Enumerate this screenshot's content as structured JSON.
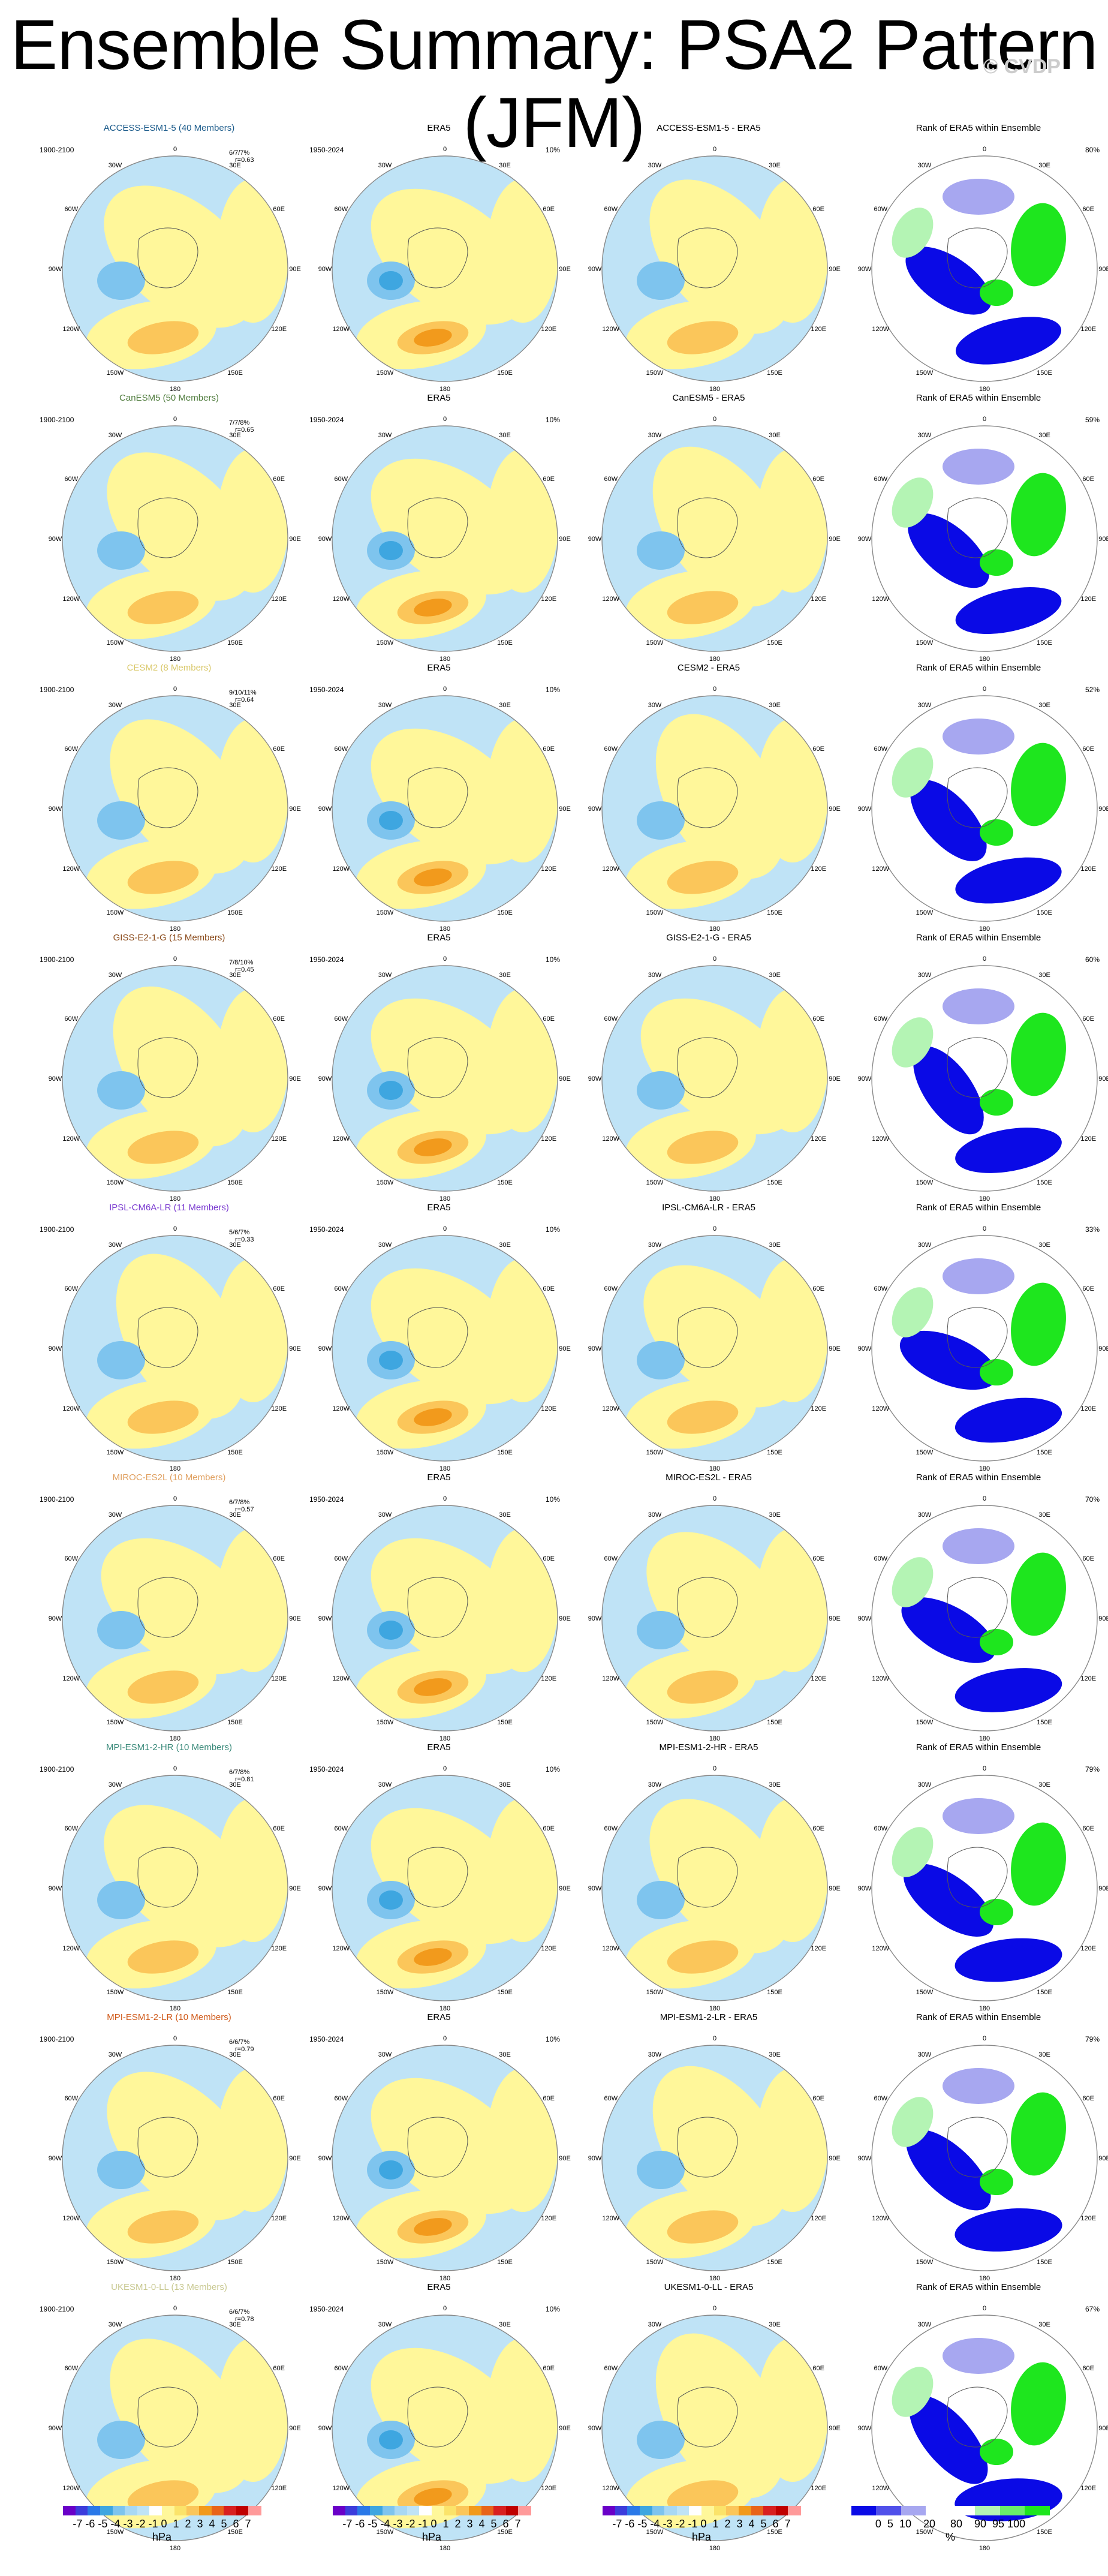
{
  "page": {
    "title": "Ensemble Summary: PSA2 Pattern (JFM)",
    "watermark": "© CVDP"
  },
  "colors": {
    "positive_light": "#fff79a",
    "positive_mid": "#fbc65a",
    "positive_strong": "#f29a1c",
    "negative_light": "#bfe3f6",
    "negative_mid": "#7ec4ee",
    "negative_strong": "#3ea6e0",
    "rank_low": "#0a0ae6",
    "rank_low_light": "#a7a7f0",
    "rank_high": "#1ee61e",
    "rank_high_light": "#b4f4b4"
  },
  "shared": {
    "era5_title": "ERA5",
    "era5_period": "1950-2024",
    "era5_pct": "10%",
    "model_period": "1900-2100",
    "rank_title": "Rank of ERA5 within Ensemble",
    "lon_labels": [
      "0",
      "30E",
      "60E",
      "90E",
      "120E",
      "150E",
      "180",
      "150W",
      "120W",
      "90W",
      "60W",
      "30W"
    ]
  },
  "rows": [
    {
      "model": "ACCESS-ESM1-5 (40 Members)",
      "ratio": "6/7/7%",
      "r": "r=0.63",
      "diff": "ACCESS-ESM1-5 - ERA5",
      "rank_pct": "80%",
      "title_color": "#1a5a8a"
    },
    {
      "model": "CanESM5 (50 Members)",
      "ratio": "7/7/8%",
      "r": "r=0.65",
      "diff": "CanESM5 - ERA5",
      "rank_pct": "59%",
      "title_color": "#4d7a3a"
    },
    {
      "model": "CESM2 (8 Members)",
      "ratio": "9/10/11%",
      "r": "r=0.64",
      "diff": "CESM2 - ERA5",
      "rank_pct": "52%",
      "title_color": "#d9c86a"
    },
    {
      "model": "GISS-E2-1-G (15 Members)",
      "ratio": "7/8/10%",
      "r": "r=0.45",
      "diff": "GISS-E2-1-G - ERA5",
      "rank_pct": "60%",
      "title_color": "#8a4a1a"
    },
    {
      "model": "IPSL-CM6A-LR (11 Members)",
      "ratio": "5/6/7%",
      "r": "r=0.33",
      "diff": "IPSL-CM6A-LR - ERA5",
      "rank_pct": "33%",
      "title_color": "#7a3ad0"
    },
    {
      "model": "MIROC-ES2L (10 Members)",
      "ratio": "6/7/8%",
      "r": "r=0.57",
      "diff": "MIROC-ES2L - ERA5",
      "rank_pct": "70%",
      "title_color": "#e0a060"
    },
    {
      "model": "MPI-ESM1-2-HR (10 Members)",
      "ratio": "6/7/8%",
      "r": "r=0.81",
      "diff": "MPI-ESM1-2-HR - ERA5",
      "rank_pct": "79%",
      "title_color": "#3a8a7a"
    },
    {
      "model": "MPI-ESM1-2-LR (10 Members)",
      "ratio": "6/6/7%",
      "r": "r=0.79",
      "diff": "MPI-ESM1-2-LR - ERA5",
      "rank_pct": "79%",
      "title_color": "#d05a1a"
    },
    {
      "model": "UKESM1-0-LL (13 Members)",
      "ratio": "6/6/7%",
      "r": "r=0.78",
      "diff": "UKESM1-0-LL - ERA5",
      "rank_pct": "67%",
      "title_color": "#c8c890"
    }
  ],
  "colorbars": [
    {
      "ticks": "-7 -6 -5 -4 -3 -2 -1 0  1  2  3  4  5  6  7",
      "unit": "hPa"
    },
    {
      "ticks": "-7 -6 -5 -4 -3 -2 -1 0  1  2  3  4  5  6  7",
      "unit": "hPa"
    },
    {
      "ticks": "-7 -6 -5 -4 -3 -2 -1 0  1  2  3  4  5  6  7",
      "unit": "hPa"
    },
    {
      "ticks": "0  5  10    20     80    90  95 100",
      "unit": "%"
    }
  ],
  "scale_colors": [
    "#6a00c8",
    "#3c3cdc",
    "#2a78e8",
    "#3ea6e0",
    "#7ec4ee",
    "#a8d8f4",
    "#bfe3f6",
    "#ffffff",
    "#fff79a",
    "#fbe36a",
    "#fbc65a",
    "#f29a1c",
    "#e8641a",
    "#d82020",
    "#c00000",
    "#ff9a9a"
  ],
  "rank_scale_colors": [
    "#0a0ae6",
    "#5050ea",
    "#a7a7f0",
    "#ffffff",
    "#ffffff",
    "#b4f4b4",
    "#6aee6a",
    "#1ee61e"
  ]
}
